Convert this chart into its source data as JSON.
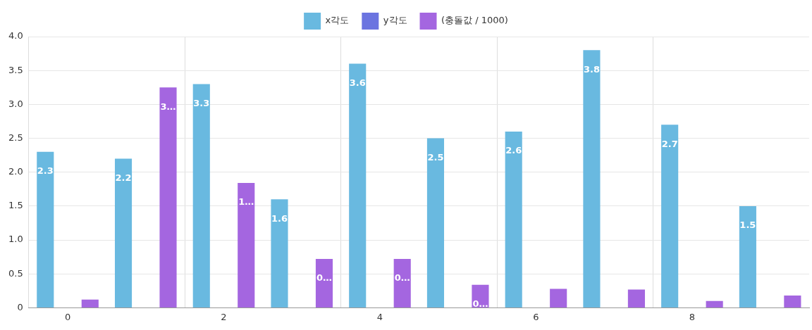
{
  "chart_data": {
    "type": "bar",
    "categories": [
      "0",
      null,
      "2",
      null,
      "4",
      null,
      "6",
      null,
      "8",
      null
    ],
    "series": [
      {
        "name": "x각도",
        "color": "#69b9e0",
        "values": [
          2.3,
          2.2,
          3.3,
          1.6,
          3.6,
          2.5,
          2.6,
          3.8,
          2.7,
          1.5
        ],
        "value_labels": [
          "2.3",
          "2.2",
          "3.3",
          "1.6",
          "3.6",
          "2.5",
          "2.6",
          "3.8",
          "2.7",
          "1.5"
        ]
      },
      {
        "name": "y각도",
        "color": "#6b74e0",
        "values": [
          0,
          0,
          0,
          0,
          0,
          0,
          0,
          0,
          0,
          0
        ]
      },
      {
        "name": "(충돌값 / 1000)",
        "color": "#a466e0",
        "values": [
          0.12,
          3.25,
          1.84,
          0.72,
          0.72,
          0.34,
          0.28,
          0.27,
          0.1,
          0.18
        ],
        "value_labels": [
          null,
          "3…",
          "1…",
          "0…",
          "0…",
          "0…",
          null,
          null,
          null,
          null
        ]
      }
    ],
    "ylim": [
      0,
      4
    ],
    "yticks": [
      0,
      {
        "value": 0.5,
        "label": "0.5"
      },
      {
        "value": 1,
        "label": "1.0"
      },
      {
        "value": 1.5,
        "label": "1.5"
      },
      {
        "value": 2,
        "label": "2.0"
      },
      {
        "value": 2.5,
        "label": "2.5"
      },
      {
        "value": 3,
        "label": "3.0"
      },
      {
        "value": 3.5,
        "label": "3.5"
      },
      {
        "value": 4,
        "label": "4.0"
      }
    ],
    "grid": true,
    "legend": "top"
  }
}
